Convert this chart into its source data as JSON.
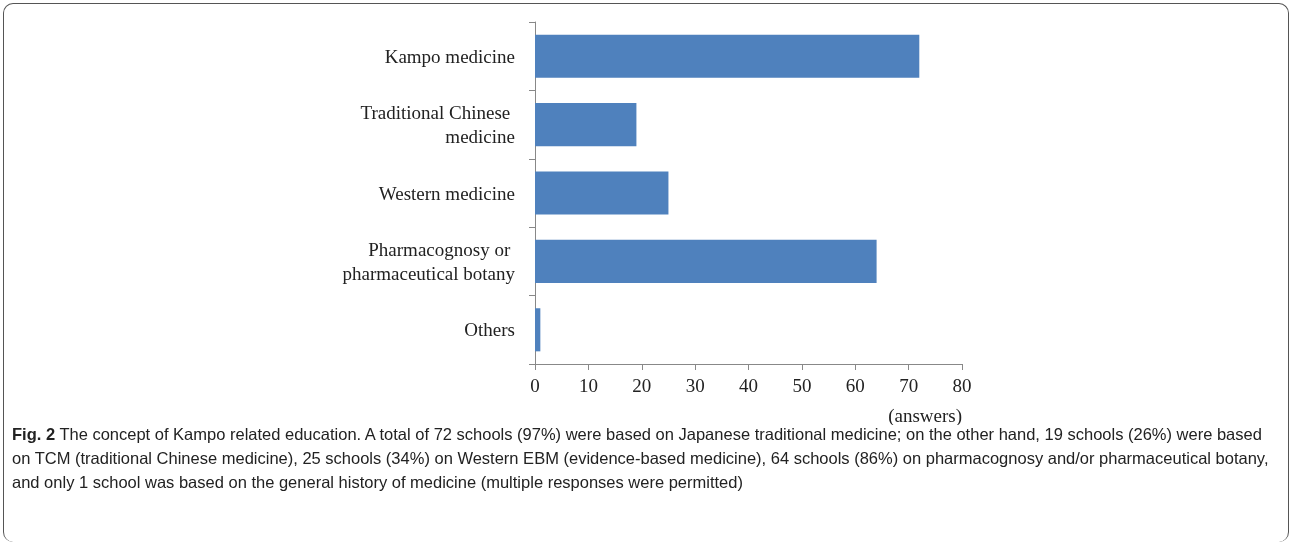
{
  "chart_data": {
    "type": "bar",
    "orientation": "horizontal",
    "categories": [
      "Kampo medicine",
      "Traditional Chinese medicine",
      "Western medicine",
      "Pharmacognosy or pharmaceutical botany",
      "Others"
    ],
    "values": [
      72,
      19,
      25,
      64,
      1
    ],
    "color": "#4f81bd",
    "xlim": [
      0,
      80
    ],
    "xticks": [
      0,
      10,
      20,
      30,
      40,
      50,
      60,
      70,
      80
    ],
    "xlabel": "(answers)",
    "grid": false,
    "annotations": [
      "Fig. 2 The concept of Kampo related education. A total of 72 schools (97%) were based on Japanese traditional medicine; on the other hand, 19 schools (26%) were based on TCM (traditional Chinese medicine), 25 schools (34%) on Western EBM (evidence-based medicine), 64 schools (86%) on pharmacognosy and/or pharmaceutical botany, and only 1 school was based on the general history of medicine (multiple responses were permitted)"
    ]
  }
}
